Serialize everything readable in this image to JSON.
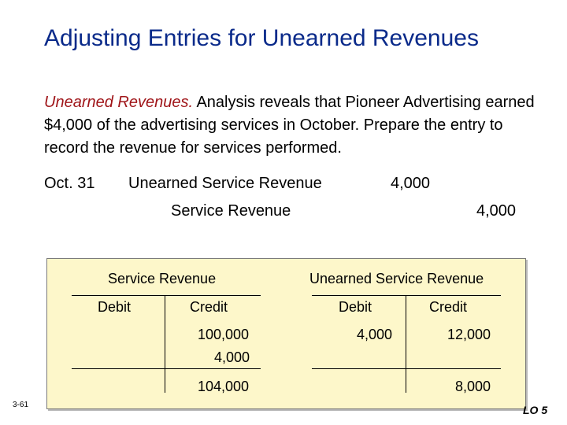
{
  "title": "Adjusting Entries for Unearned Revenues",
  "intro": {
    "lead": "Unearned Revenues.",
    "text": " Analysis reveals that Pioneer Advertising earned $4,000 of the advertising services in October. Prepare the entry to record the revenue for services performed."
  },
  "journal_entry": {
    "date": "Oct. 31",
    "debit_account": "Unearned Service Revenue",
    "debit_amount": "4,000",
    "credit_account": "Service Revenue",
    "credit_amount": "4,000"
  },
  "t_accounts": [
    {
      "name": "Service Revenue",
      "debit_label": "Debit",
      "credit_label": "Credit",
      "credit_entries": [
        "100,000",
        "4,000"
      ],
      "credit_balance": "104,000"
    },
    {
      "name": "Unearned Service Revenue",
      "debit_label": "Debit",
      "credit_label": "Credit",
      "debit_entries": [
        "4,000"
      ],
      "credit_entries": [
        "12,000"
      ],
      "credit_balance": "8,000"
    }
  ],
  "footer": {
    "slide_number": "3-61",
    "objective": "LO 5"
  }
}
